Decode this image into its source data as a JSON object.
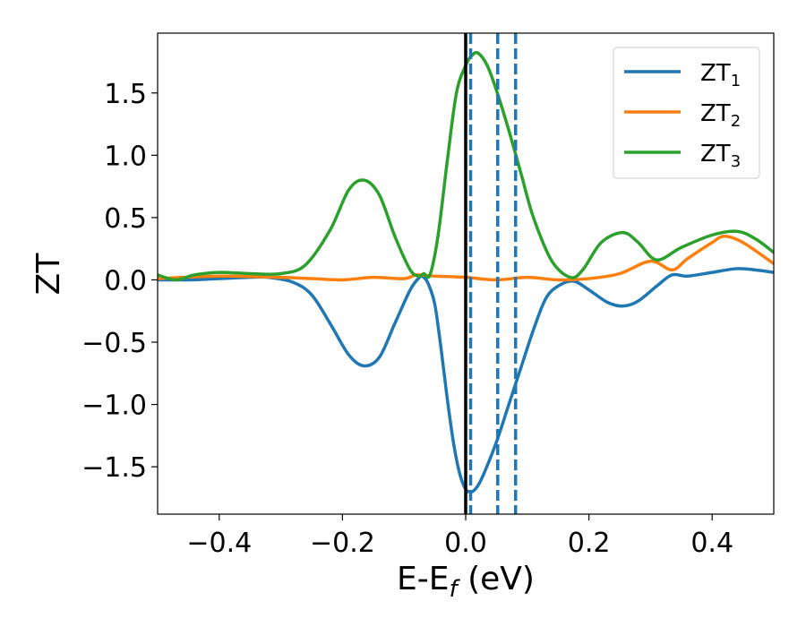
{
  "chart_data": {
    "type": "line",
    "title": "",
    "xlabel_main": "E-E",
    "xlabel_sub": "f",
    "xlabel_unit": " (eV)",
    "ylabel": "ZT",
    "xlim": [
      -0.5,
      0.5
    ],
    "ylim": [
      -1.88,
      1.98
    ],
    "xticks": [
      -0.4,
      -0.2,
      0.0,
      0.2,
      0.4
    ],
    "xtick_labels": [
      "−0.4",
      "−0.2",
      "0.0",
      "0.2",
      "0.4"
    ],
    "yticks": [
      -1.5,
      -1.0,
      -0.5,
      0.0,
      0.5,
      1.0,
      1.5
    ],
    "ytick_labels": [
      "−1.5",
      "−1.0",
      "−0.5",
      "0.0",
      "0.5",
      "1.0",
      "1.5"
    ],
    "grid": false,
    "legend_position": "top-right",
    "fermi_line": {
      "x": 0.0,
      "color": "#000000"
    },
    "dashed_lines": {
      "x": [
        0.008,
        0.052,
        0.081
      ],
      "color": "#1f77b4"
    },
    "series": [
      {
        "name": "ZT",
        "subscript": "1",
        "color": "#1f77b4",
        "x": [
          -0.5,
          -0.45,
          -0.4,
          -0.35,
          -0.32,
          -0.28,
          -0.25,
          -0.22,
          -0.19,
          -0.165,
          -0.14,
          -0.115,
          -0.09,
          -0.075,
          -0.068,
          -0.06,
          -0.05,
          -0.04,
          -0.03,
          -0.02,
          -0.01,
          0.0,
          0.01,
          0.02,
          0.03,
          0.05,
          0.07,
          0.09,
          0.11,
          0.13,
          0.15,
          0.175,
          0.2,
          0.23,
          0.255,
          0.28,
          0.31,
          0.335,
          0.36,
          0.4,
          0.44,
          0.47,
          0.5
        ],
        "y": [
          0.0,
          0.0,
          0.01,
          0.02,
          0.02,
          -0.02,
          -0.12,
          -0.35,
          -0.6,
          -0.69,
          -0.62,
          -0.35,
          -0.08,
          0.02,
          0.02,
          -0.04,
          -0.2,
          -0.55,
          -0.95,
          -1.3,
          -1.55,
          -1.68,
          -1.7,
          -1.65,
          -1.55,
          -1.3,
          -1.0,
          -0.7,
          -0.4,
          -0.15,
          -0.05,
          -0.01,
          -0.08,
          -0.18,
          -0.21,
          -0.17,
          -0.05,
          0.04,
          0.03,
          0.06,
          0.09,
          0.08,
          0.06
        ]
      },
      {
        "name": "ZT",
        "subscript": "2",
        "color": "#ff7f0e",
        "x": [
          -0.5,
          -0.4,
          -0.3,
          -0.25,
          -0.2,
          -0.15,
          -0.1,
          -0.08,
          -0.05,
          0.0,
          0.05,
          0.1,
          0.15,
          0.2,
          0.25,
          0.3,
          0.335,
          0.36,
          0.4,
          0.42,
          0.45,
          0.5
        ],
        "y": [
          0.01,
          0.03,
          0.02,
          0.01,
          0.0,
          0.02,
          0.01,
          0.04,
          0.03,
          0.02,
          0.0,
          0.02,
          0.0,
          0.01,
          0.05,
          0.15,
          0.08,
          0.17,
          0.3,
          0.35,
          0.3,
          0.13
        ]
      },
      {
        "name": "ZT",
        "subscript": "3",
        "color": "#2ca02c",
        "x": [
          -0.5,
          -0.47,
          -0.44,
          -0.4,
          -0.35,
          -0.3,
          -0.26,
          -0.22,
          -0.19,
          -0.165,
          -0.14,
          -0.115,
          -0.09,
          -0.075,
          -0.068,
          -0.058,
          -0.045,
          -0.03,
          -0.015,
          0.0,
          0.01,
          0.02,
          0.035,
          0.05,
          0.07,
          0.09,
          0.11,
          0.14,
          0.17,
          0.19,
          0.22,
          0.255,
          0.28,
          0.31,
          0.35,
          0.4,
          0.44,
          0.47,
          0.5
        ],
        "y": [
          0.04,
          0.0,
          0.04,
          0.06,
          0.05,
          0.05,
          0.12,
          0.4,
          0.72,
          0.8,
          0.68,
          0.35,
          0.08,
          0.03,
          0.05,
          0.04,
          0.35,
          0.95,
          1.5,
          1.72,
          1.8,
          1.82,
          1.72,
          1.52,
          1.2,
          0.85,
          0.5,
          0.15,
          0.02,
          0.08,
          0.3,
          0.38,
          0.3,
          0.16,
          0.26,
          0.36,
          0.39,
          0.33,
          0.22
        ]
      }
    ]
  }
}
